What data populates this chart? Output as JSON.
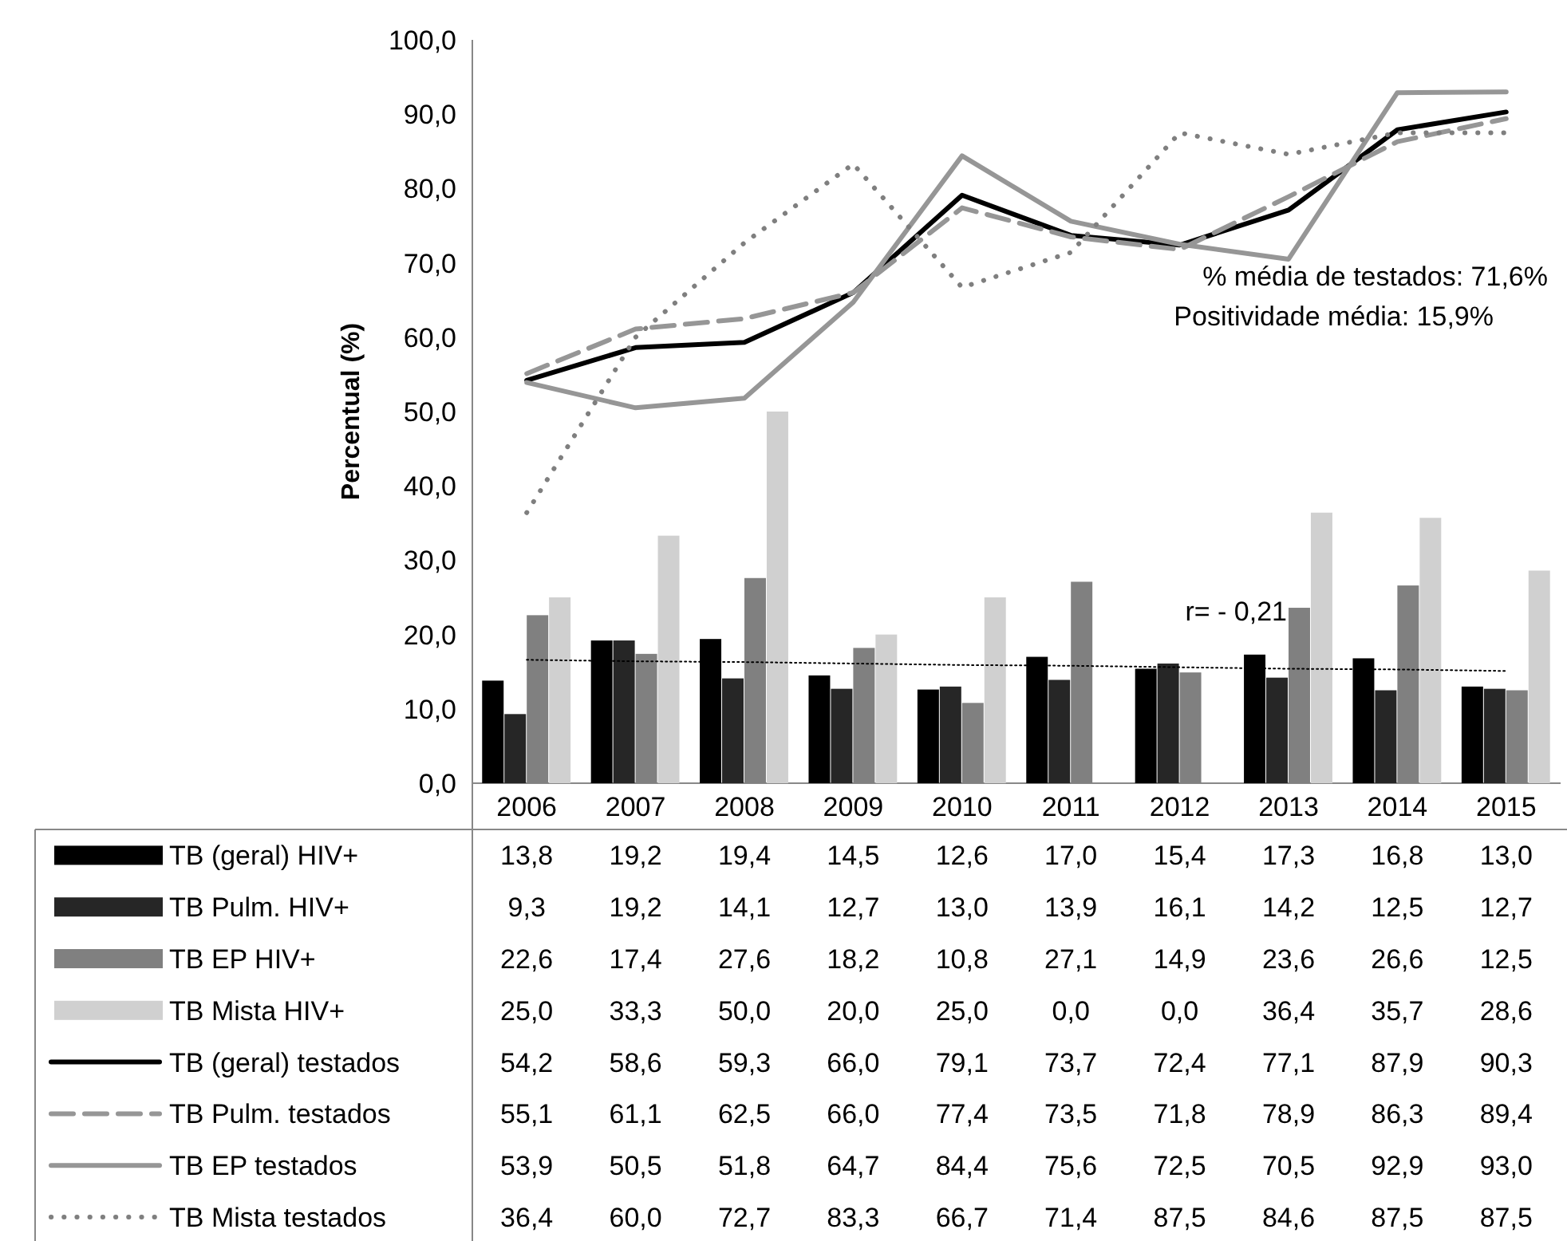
{
  "chart_data": {
    "type": "bar",
    "ylabel": "Percentual (%)",
    "categories": [
      "2006",
      "2007",
      "2008",
      "2009",
      "2010",
      "2011",
      "2012",
      "2013",
      "2014",
      "2015"
    ],
    "ylim": [
      0,
      100
    ],
    "yticks": [
      {
        "value": 0,
        "label": "0,0"
      },
      {
        "value": 10,
        "label": "10,0"
      },
      {
        "value": 20,
        "label": "20,0"
      },
      {
        "value": 30,
        "label": "30,0"
      },
      {
        "value": 40,
        "label": "40,0"
      },
      {
        "value": 50,
        "label": "50,0"
      },
      {
        "value": 60,
        "label": "60,0"
      },
      {
        "value": 70,
        "label": "70,0"
      },
      {
        "value": 80,
        "label": "80,0"
      },
      {
        "value": 90,
        "label": "90,0"
      },
      {
        "value": 100,
        "label": "100,0"
      }
    ],
    "grid": false,
    "legend": "bottom",
    "series": [
      {
        "name": "TB (geral) HIV+",
        "color": "#000000",
        "values": [
          13.8,
          19.2,
          19.4,
          14.5,
          12.6,
          17.0,
          15.4,
          17.3,
          16.8,
          13.0
        ],
        "value_labels": [
          "13,8",
          "19,2",
          "19,4",
          "14,5",
          "12,6",
          "17,0",
          "15,4",
          "17,3",
          "16,8",
          "13,0"
        ]
      },
      {
        "name": "TB Pulm. HIV+",
        "color": "#262626",
        "values": [
          9.3,
          19.2,
          14.1,
          12.7,
          13.0,
          13.9,
          16.1,
          14.2,
          12.5,
          12.7
        ],
        "value_labels": [
          "9,3",
          "19,2",
          "14,1",
          "12,7",
          "13,0",
          "13,9",
          "16,1",
          "14,2",
          "12,5",
          "12,7"
        ]
      },
      {
        "name": "TB EP HIV+",
        "color": "#808080",
        "values": [
          22.6,
          17.4,
          27.6,
          18.2,
          10.8,
          27.1,
          14.9,
          23.6,
          26.6,
          12.5
        ],
        "value_labels": [
          "22,6",
          "17,4",
          "27,6",
          "18,2",
          "10,8",
          "27,1",
          "14,9",
          "23,6",
          "26,6",
          "12,5"
        ]
      },
      {
        "name": "TB Mista HIV+",
        "color": "#d0d0d0",
        "values": [
          25.0,
          33.3,
          50.0,
          20.0,
          25.0,
          0.0,
          0.0,
          36.4,
          35.7,
          28.6
        ],
        "value_labels": [
          "25,0",
          "33,3",
          "50,0",
          "20,0",
          "25,0",
          "0,0",
          "0,0",
          "36,4",
          "35,7",
          "28,6"
        ]
      },
      {
        "name": "TB (geral) testados",
        "type": "line",
        "color": "#000000",
        "line_style": "solid",
        "values": [
          54.2,
          58.6,
          59.3,
          66.0,
          79.1,
          73.7,
          72.4,
          77.1,
          87.9,
          90.3
        ],
        "value_labels": [
          "54,2",
          "58,6",
          "59,3",
          "66,0",
          "79,1",
          "73,7",
          "72,4",
          "77,1",
          "87,9",
          "90,3"
        ]
      },
      {
        "name": "TB Pulm. testados",
        "type": "line",
        "color": "#969696",
        "line_style": "dashed",
        "values": [
          55.1,
          61.1,
          62.5,
          66.0,
          77.4,
          73.5,
          71.8,
          78.9,
          86.3,
          89.4
        ],
        "value_labels": [
          "55,1",
          "61,1",
          "62,5",
          "66,0",
          "77,4",
          "73,5",
          "71,8",
          "78,9",
          "86,3",
          "89,4"
        ]
      },
      {
        "name": "TB EP testados",
        "type": "line",
        "color": "#969696",
        "line_style": "solid",
        "values": [
          53.9,
          50.5,
          51.8,
          64.7,
          84.4,
          75.6,
          72.5,
          70.5,
          92.9,
          93.0
        ],
        "value_labels": [
          "53,9",
          "50,5",
          "51,8",
          "64,7",
          "84,4",
          "75,6",
          "72,5",
          "70,5",
          "92,9",
          "93,0"
        ]
      },
      {
        "name": "TB Mista testados",
        "type": "line",
        "color": "#7f7f7f",
        "line_style": "dotted",
        "values": [
          36.4,
          60.0,
          72.7,
          83.3,
          66.7,
          71.4,
          87.5,
          84.6,
          87.5,
          87.5
        ],
        "value_labels": [
          "36,4",
          "60,0",
          "72,7",
          "83,3",
          "66,7",
          "71,4",
          "87,5",
          "84,6",
          "87,5",
          "87,5"
        ]
      },
      {
        "type": "line",
        "color": "#000000",
        "line_style": "thin-dotted",
        "values": [
          16.6,
          16.4,
          16.3,
          16.1,
          15.9,
          15.8,
          15.6,
          15.4,
          15.3,
          15.1
        ]
      }
    ],
    "annotations": [
      "% média de testados: 71,6%",
      "Positividade média: 15,9%",
      "r= - 0,21"
    ]
  }
}
